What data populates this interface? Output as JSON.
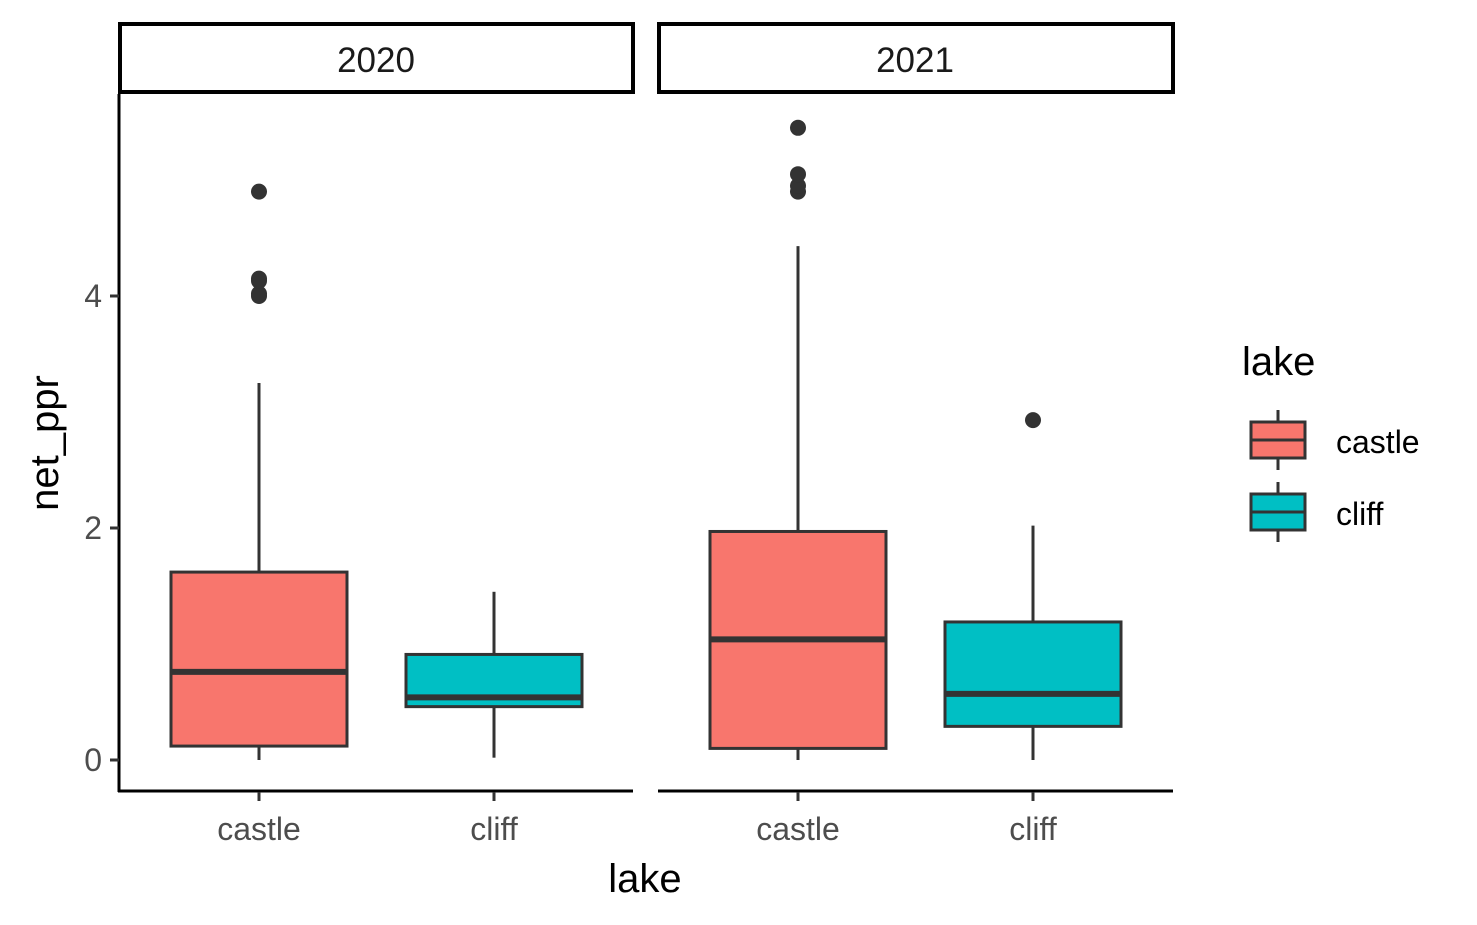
{
  "chart_data": {
    "type": "box",
    "facet_var": "year",
    "facets": [
      "2020",
      "2021"
    ],
    "categories": [
      "castle",
      "cliff"
    ],
    "xlabel": "lake",
    "ylabel": "net_ppr",
    "yticks": [
      0,
      2,
      4
    ],
    "ylim": [
      -0.25,
      5.75
    ],
    "legend": {
      "title": "lake",
      "position": "right",
      "entries": [
        {
          "label": "castle",
          "color": "#F8766D"
        },
        {
          "label": "cliff",
          "color": "#00BFC4"
        }
      ]
    },
    "colors": {
      "castle": "#F8766D",
      "cliff": "#00BFC4",
      "outline": "#333333"
    },
    "panels": [
      {
        "facet": "2020",
        "boxes": [
          {
            "category": "castle",
            "whisker_low": 0.0,
            "q1": 0.12,
            "median": 0.76,
            "q3": 1.62,
            "whisker_high": 3.25,
            "outliers": [
              4.0,
              4.02,
              4.13,
              4.15,
              4.9
            ]
          },
          {
            "category": "cliff",
            "whisker_low": 0.02,
            "q1": 0.46,
            "median": 0.54,
            "q3": 0.91,
            "whisker_high": 1.45,
            "outliers": []
          }
        ]
      },
      {
        "facet": "2021",
        "boxes": [
          {
            "category": "castle",
            "whisker_low": 0.0,
            "q1": 0.1,
            "median": 1.04,
            "q3": 1.97,
            "whisker_high": 4.43,
            "outliers": [
              4.9,
              4.95,
              5.05,
              5.45
            ]
          },
          {
            "category": "cliff",
            "whisker_low": 0.0,
            "q1": 0.29,
            "median": 0.57,
            "q3": 1.19,
            "whisker_high": 2.02,
            "outliers": [
              2.93
            ]
          }
        ]
      }
    ]
  }
}
